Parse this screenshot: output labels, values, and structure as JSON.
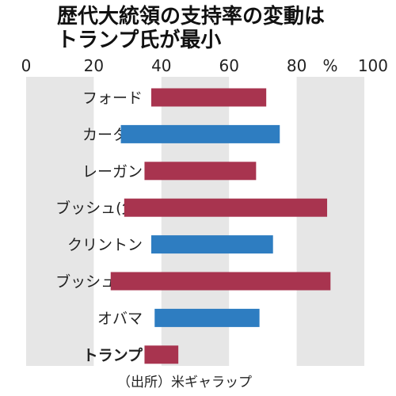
{
  "title_lines": [
    "歴代大統領の支持率の変動は",
    "トランプ氏が最小"
  ],
  "source": "（出所）米ギャラップ",
  "colors": {
    "republican": "#a8344f",
    "democrat": "#2e7dc1",
    "band": "#e6e6e6"
  },
  "chart_data": {
    "type": "bar",
    "orientation": "horizontal-range",
    "title": "歴代大統領の支持率の変動は トランプ氏が最小",
    "unit": "%",
    "xlim": [
      0,
      100
    ],
    "x_ticks": [
      "0",
      "20",
      "40",
      "60",
      "80",
      "100"
    ],
    "categories": [
      "フォード",
      "カーター",
      "レーガン",
      "ブッシュ(父)",
      "クリントン",
      "ブッシュ(子)",
      "オバマ",
      "トランプ"
    ],
    "series": [
      {
        "values": [
          [
            37,
            71
          ],
          [
            28,
            75
          ],
          [
            35,
            68
          ],
          [
            29,
            89
          ],
          [
            37,
            73
          ],
          [
            25,
            90
          ],
          [
            38,
            69
          ],
          [
            35,
            45
          ]
        ]
      }
    ],
    "party": [
      "republican",
      "democrat",
      "republican",
      "republican",
      "democrat",
      "republican",
      "democrat",
      "republican"
    ],
    "highlight": "トランプ"
  }
}
